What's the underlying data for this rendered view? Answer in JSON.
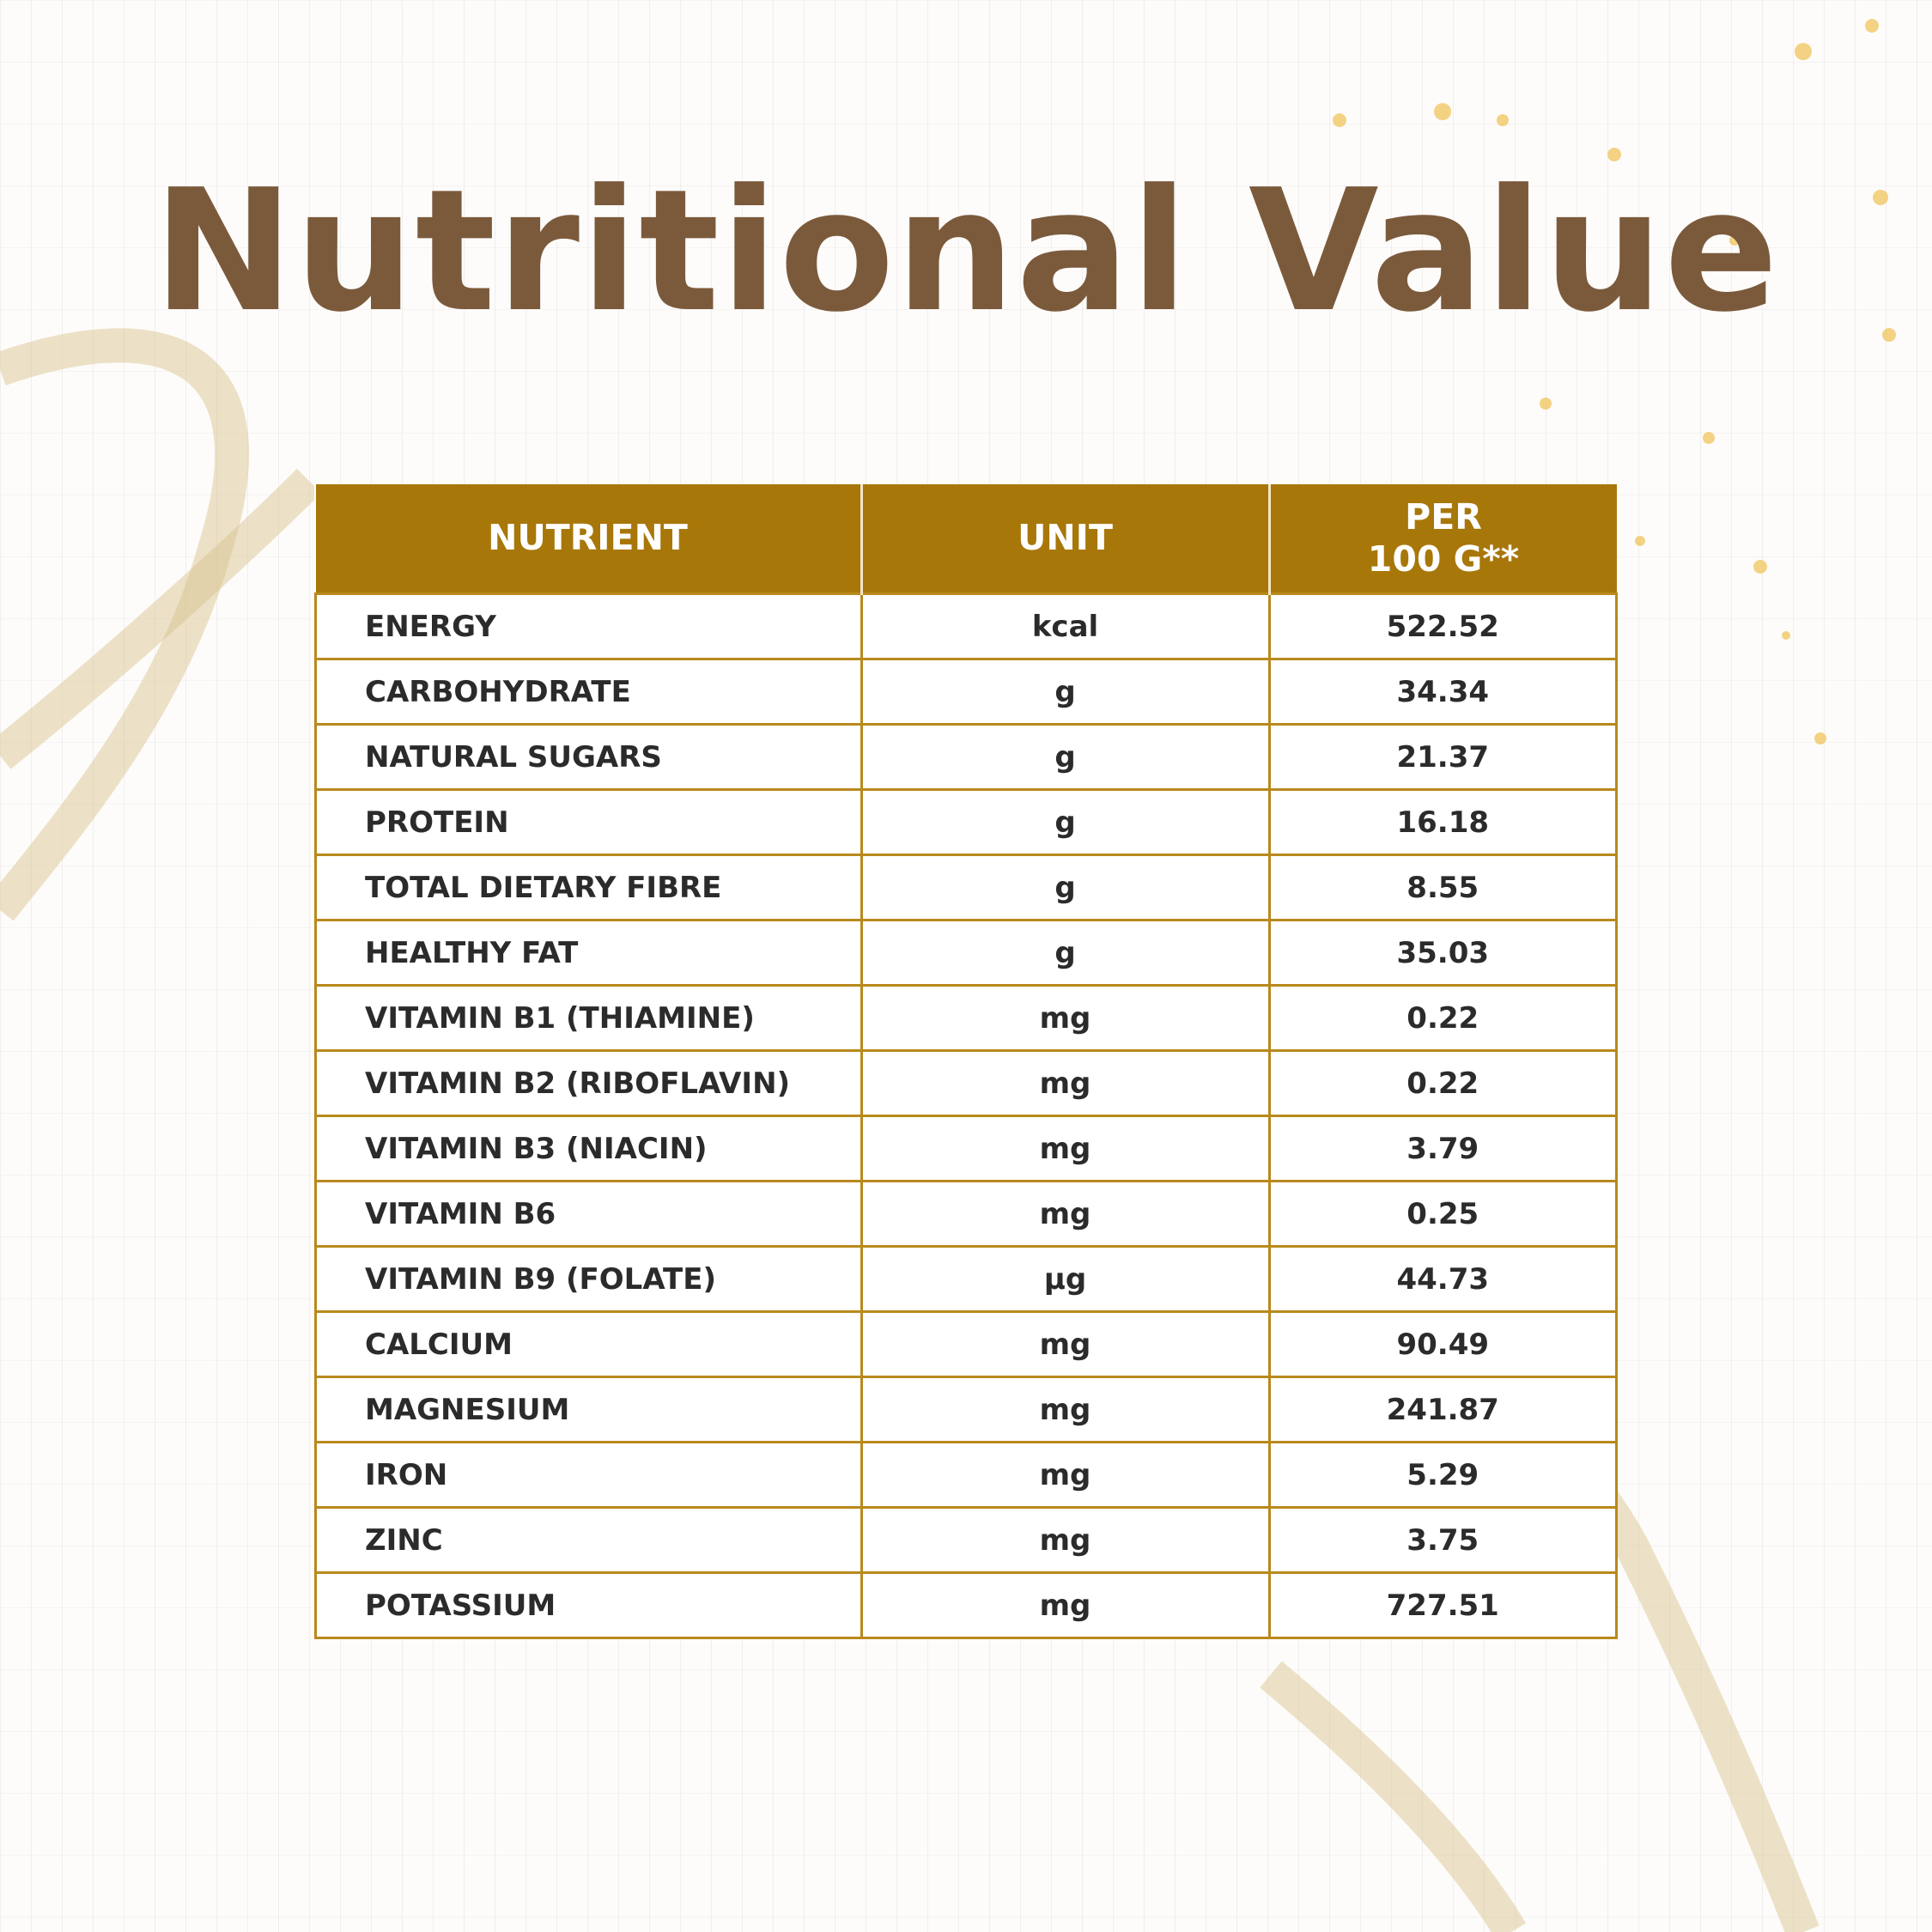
{
  "title": "Nutritional Value",
  "table": {
    "header": [
      "NUTRIENT",
      "UNIT",
      "PER\n100 G**"
    ],
    "rows": [
      [
        "ENERGY",
        "kcal",
        "522.52"
      ],
      [
        "CARBOHYDRATE",
        "g",
        "34.34"
      ],
      [
        "NATURAL SUGARS",
        "g",
        "21.37"
      ],
      [
        "PROTEIN",
        "g",
        "16.18"
      ],
      [
        "TOTAL DIETARY FIBRE",
        "g",
        "8.55"
      ],
      [
        "HEALTHY FAT",
        "g",
        "35.03"
      ],
      [
        "VITAMIN B1 (THIAMINE)",
        "mg",
        "0.22"
      ],
      [
        "VITAMIN B2 (RIBOFLAVIN)",
        "mg",
        "0.22"
      ],
      [
        "VITAMIN B3 (NIACIN)",
        "mg",
        "3.79"
      ],
      [
        "VITAMIN B6",
        "mg",
        "0.25"
      ],
      [
        "VITAMIN B9 (FOLATE)",
        "µg",
        "44.73"
      ],
      [
        "CALCIUM",
        "mg",
        "90.49"
      ],
      [
        "MAGNESIUM",
        "mg",
        "241.87"
      ],
      [
        "IRON",
        "mg",
        "5.29"
      ],
      [
        "ZINC",
        "mg",
        "3.75"
      ],
      [
        "POTASSIUM",
        "mg",
        "727.51"
      ]
    ]
  }
}
